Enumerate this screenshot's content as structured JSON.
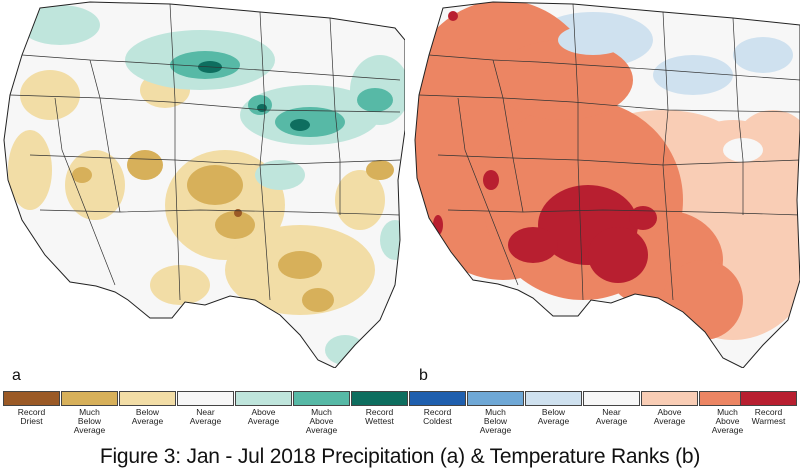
{
  "panels": [
    {
      "id": "a",
      "label": "a"
    },
    {
      "id": "b",
      "label": "b"
    }
  ],
  "precip_legend": [
    {
      "label": "Record\nDriest",
      "color": "#9b5a26"
    },
    {
      "label": "Much\nBelow\nAverage",
      "color": "#d7b05a"
    },
    {
      "label": "Below\nAverage",
      "color": "#f2dda6"
    },
    {
      "label": "Near\nAverage",
      "color": "#f7f7f7"
    },
    {
      "label": "Above\nAverage",
      "color": "#bfe5dc"
    },
    {
      "label": "Much\nAbove\nAverage",
      "color": "#57b9a6"
    },
    {
      "label": "Record\nWettest",
      "color": "#0e6e5f"
    }
  ],
  "temp_legend": [
    {
      "label": "Record\nColdest",
      "color": "#1f5fae"
    },
    {
      "label": "Much\nBelow\nAverage",
      "color": "#6fa8d6"
    },
    {
      "label": "Below\nAverage",
      "color": "#cfe1ef"
    },
    {
      "label": "Near\nAverage",
      "color": "#f7f7f7"
    },
    {
      "label": "Above\nAverage",
      "color": "#f9cdb5"
    },
    {
      "label": "Much\nAbove\nAverage",
      "color": "#ec8563"
    },
    {
      "label": "Record\nWarmest",
      "color": "#b81f30"
    }
  ],
  "caption": "Figure 3: Jan - Jul 2018 Precipitation (a) & Temperature Ranks (b)"
}
